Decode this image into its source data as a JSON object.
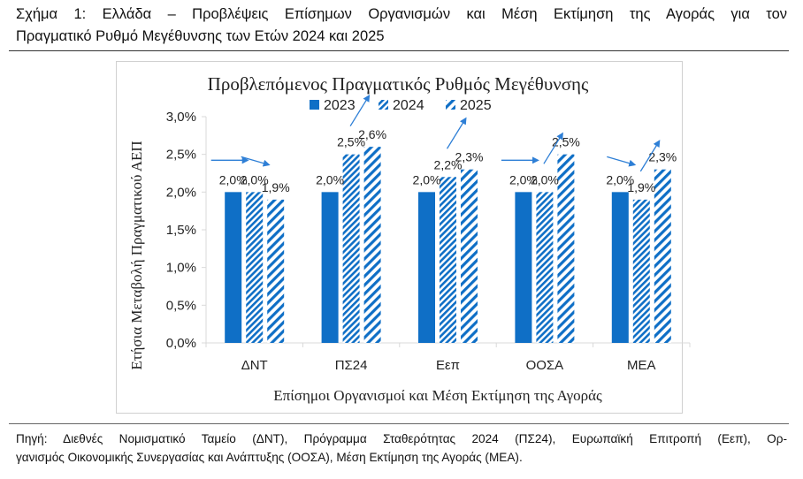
{
  "figure": {
    "caption_line1": "Σχήμα 1: Ελλάδα – Προβλέψεις Επίσημων Οργανισμών και Μέση Εκτίμηση της Αγοράς για τον",
    "caption_line2": "Πραγματικό Ρυθμό Μεγέθυνσης των Ετών 2024 και 2025",
    "source_line1": "Πηγή: Διεθνές Νομισματικό Ταμείο (ΔΝΤ), Πρόγραμμα Σταθερότητας 2024 (ΠΣ24), Ευρωπαϊκή Επιτροπή (Εεπ), Ορ-",
    "source_line2": "γανισμός Οικονομικής Συνεργασίας και Ανάπτυξης (ΟΟΣΑ), Μέση Εκτίμηση της Αγοράς (ΜΕΑ)."
  },
  "colors": {
    "bar_color": "#0f6fc6",
    "arrow_color": "#2e7fd6",
    "axis_color": "#d9d9d9"
  },
  "chart_data": {
    "type": "bar",
    "title": "Προβλεπόμενος Πραγματικός Ρυθμός Μεγέθυνσης",
    "xlabel": "Επίσημοι Οργανισμοί και Μέση Εκτίμηση της Αγοράς",
    "ylabel": "Ετήσια Μεταβολή Πραγματικού ΑΕΠ",
    "categories": [
      "ΔΝΤ",
      "ΠΣ24",
      "Εεπ",
      "ΟΟΣΑ",
      "ΜΕΑ"
    ],
    "series": [
      {
        "name": "2023",
        "pattern": "solid",
        "values": [
          2.0,
          2.0,
          2.0,
          2.0,
          2.0
        ],
        "labels": [
          "2,0%",
          "2,0%",
          "2,0%",
          "2,0%",
          "2,0%"
        ]
      },
      {
        "name": "2024",
        "pattern": "dense-diagonal",
        "values": [
          2.0,
          2.5,
          2.2,
          2.0,
          1.9
        ],
        "labels": [
          "2,0%",
          "2,5%",
          "2,2%",
          "2,0%",
          "1,9%"
        ]
      },
      {
        "name": "2025",
        "pattern": "wide-diagonal",
        "values": [
          1.9,
          2.6,
          2.3,
          2.5,
          2.3
        ],
        "labels": [
          "1,9%",
          "2,6%",
          "2,3%",
          "2,5%",
          "2,3%"
        ]
      }
    ],
    "ylim": [
      0,
      3.0
    ],
    "yticks": [
      "0,0%",
      "0,5%",
      "1,0%",
      "1,5%",
      "2,0%",
      "2,5%",
      "3,0%"
    ],
    "grid": false,
    "legend_position": "top",
    "annotations": [
      {
        "type": "trend-arrows",
        "category": "ΔΝΤ",
        "directions": [
          "flat",
          "down"
        ]
      },
      {
        "type": "trend-arrows",
        "category": "ΠΣ24",
        "directions": [
          "up"
        ]
      },
      {
        "type": "trend-arrows",
        "category": "Εεπ",
        "directions": [
          "up"
        ]
      },
      {
        "type": "trend-arrows",
        "category": "ΟΟΣΑ",
        "directions": [
          "flat",
          "up"
        ]
      },
      {
        "type": "trend-arrows",
        "category": "ΜΕΑ",
        "directions": [
          "down",
          "up"
        ]
      }
    ]
  }
}
